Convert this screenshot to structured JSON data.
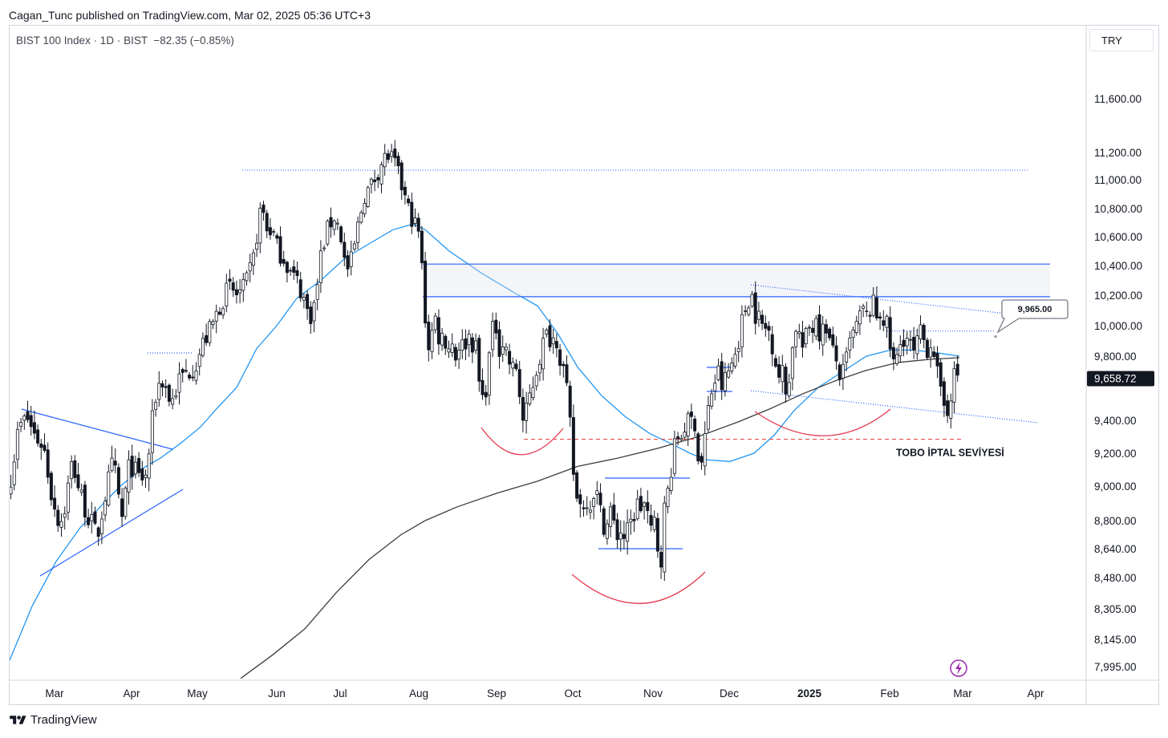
{
  "header": {
    "published_line": "Cagan_Tunc published on TradingView.com, Mar 02, 2025 05:36 UTC+3"
  },
  "legend": {
    "symbol": "BIST 100 Index · 1D · BIST",
    "change": "−82.35 (−0.85%)"
  },
  "currency_button": "TRY",
  "footer": {
    "brand": "TradingView"
  },
  "chart_data": {
    "type": "candlestick",
    "symbol": "BIST 100 Index",
    "interval": "1D",
    "exchange": "BIST",
    "currency": "TRY",
    "last_price": 9658.72,
    "last_price_label": "9,658.72",
    "price_axis_ticks": [
      {
        "value": 11600,
        "label": "11,600.00"
      },
      {
        "value": 11200,
        "label": "11,200.00"
      },
      {
        "value": 11000,
        "label": "11,000.00"
      },
      {
        "value": 10800,
        "label": "10,800.00"
      },
      {
        "value": 10600,
        "label": "10,600.00"
      },
      {
        "value": 10400,
        "label": "10,400.00"
      },
      {
        "value": 10200,
        "label": "10,200.00"
      },
      {
        "value": 10000,
        "label": "10,000.00"
      },
      {
        "value": 9800,
        "label": "9,800.00"
      },
      {
        "value": 9600,
        "label": "9,600.00"
      },
      {
        "value": 9400,
        "label": "9,400.00"
      },
      {
        "value": 9200,
        "label": "9,200.00"
      },
      {
        "value": 9000,
        "label": "9,000.00"
      },
      {
        "value": 8800,
        "label": "8,800.00"
      },
      {
        "value": 8640,
        "label": "8,640.00"
      },
      {
        "value": 8480,
        "label": "8,480.00"
      },
      {
        "value": 8305,
        "label": "8,305.00"
      },
      {
        "value": 8145,
        "label": "8,145.00"
      },
      {
        "value": 7995,
        "label": "7,995.00"
      }
    ],
    "time_axis_ticks": [
      {
        "label": "Mar",
        "bold": false
      },
      {
        "label": "Apr",
        "bold": false
      },
      {
        "label": "May",
        "bold": false
      },
      {
        "label": "Jun",
        "bold": false
      },
      {
        "label": "Jul",
        "bold": false
      },
      {
        "label": "Aug",
        "bold": false
      },
      {
        "label": "Sep",
        "bold": false
      },
      {
        "label": "Oct",
        "bold": false
      },
      {
        "label": "Nov",
        "bold": false
      },
      {
        "label": "Dec",
        "bold": false
      },
      {
        "label": "2025",
        "bold": true
      },
      {
        "label": "Feb",
        "bold": false
      },
      {
        "label": "Mar",
        "bold": false
      },
      {
        "label": "Apr",
        "bold": false
      }
    ],
    "price_callout": {
      "value": 9965,
      "label": "9,965.00"
    },
    "annotations": [
      {
        "text": "TOBO İPTAL SEVİYESİ",
        "price": 9285
      }
    ],
    "horizontal_levels": [
      {
        "price": 11070,
        "style": "dotted",
        "color": "#2962ff"
      },
      {
        "price": 10410,
        "style": "solid",
        "color": "#2962ff"
      },
      {
        "price": 10190,
        "style": "solid",
        "color": "#2962ff"
      },
      {
        "price": 9965,
        "style": "dotted",
        "color": "#2962ff"
      },
      {
        "price": 9285,
        "style": "dashed",
        "color": "#e53935"
      }
    ],
    "supply_zone": {
      "from": 10190,
      "to": 10410
    },
    "series": [
      {
        "name": "",
        "kind": "moving_average",
        "color": "#2196f3"
      },
      {
        "name": "",
        "kind": "moving_average",
        "color": "#3d3d3d"
      }
    ],
    "candle_color": "#131722",
    "grid": false
  }
}
